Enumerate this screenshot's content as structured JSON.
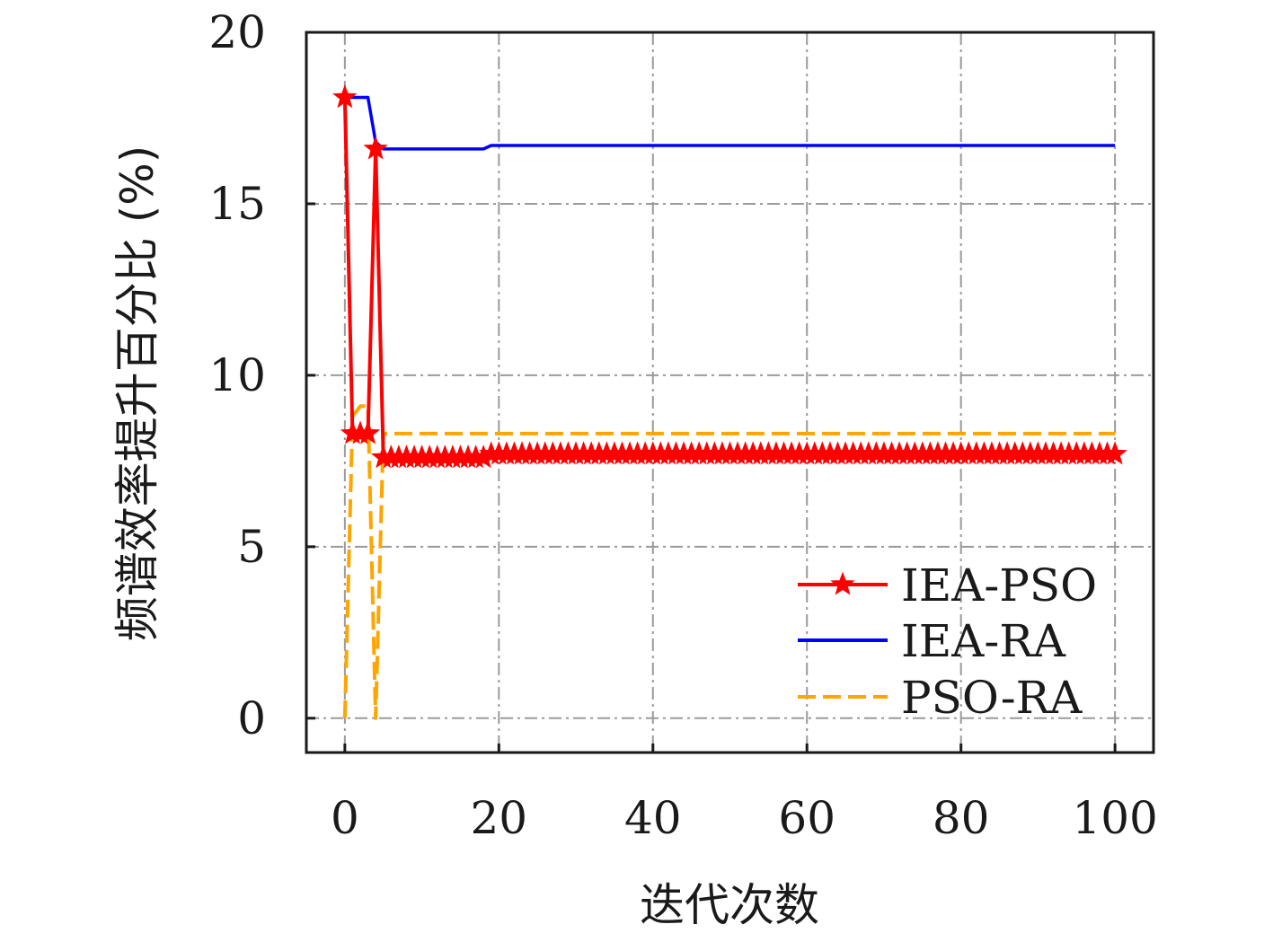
{
  "chart_data": {
    "type": "line",
    "title": "",
    "xlabel": "迭代次数",
    "ylabel": "频谱效率提升百分比 (%)",
    "xlim": [
      -5,
      105
    ],
    "ylim": [
      -1,
      20
    ],
    "xticks": [
      0,
      20,
      40,
      60,
      80,
      100
    ],
    "yticks": [
      0,
      5,
      10,
      15,
      20
    ],
    "grid": true,
    "legend_position": "lower-right",
    "series": [
      {
        "name": "IEA-PSO",
        "color": "#ff0000",
        "style": "solid-star",
        "x": [
          0,
          1,
          2,
          3,
          4,
          5,
          6,
          7,
          8,
          9,
          10,
          11,
          12,
          13,
          14,
          15,
          16,
          17,
          18,
          19,
          20,
          21,
          22,
          23,
          24,
          25,
          26,
          27,
          28,
          29,
          30,
          31,
          32,
          33,
          34,
          35,
          36,
          37,
          38,
          39,
          40,
          41,
          42,
          43,
          44,
          45,
          46,
          47,
          48,
          49,
          50,
          51,
          52,
          53,
          54,
          55,
          56,
          57,
          58,
          59,
          60,
          61,
          62,
          63,
          64,
          65,
          66,
          67,
          68,
          69,
          70,
          71,
          72,
          73,
          74,
          75,
          76,
          77,
          78,
          79,
          80,
          81,
          82,
          83,
          84,
          85,
          86,
          87,
          88,
          89,
          90,
          91,
          92,
          93,
          94,
          95,
          96,
          97,
          98,
          99,
          100
        ],
        "y": [
          18.1,
          8.3,
          8.3,
          8.3,
          16.6,
          7.6,
          7.6,
          7.6,
          7.6,
          7.6,
          7.6,
          7.6,
          7.6,
          7.6,
          7.6,
          7.6,
          7.6,
          7.6,
          7.6,
          7.7,
          7.7,
          7.7,
          7.7,
          7.7,
          7.7,
          7.7,
          7.7,
          7.7,
          7.7,
          7.7,
          7.7,
          7.7,
          7.7,
          7.7,
          7.7,
          7.7,
          7.7,
          7.7,
          7.7,
          7.7,
          7.7,
          7.7,
          7.7,
          7.7,
          7.7,
          7.7,
          7.7,
          7.7,
          7.7,
          7.7,
          7.7,
          7.7,
          7.7,
          7.7,
          7.7,
          7.7,
          7.7,
          7.7,
          7.7,
          7.7,
          7.7,
          7.7,
          7.7,
          7.7,
          7.7,
          7.7,
          7.7,
          7.7,
          7.7,
          7.7,
          7.7,
          7.7,
          7.7,
          7.7,
          7.7,
          7.7,
          7.7,
          7.7,
          7.7,
          7.7,
          7.7,
          7.7,
          7.7,
          7.7,
          7.7,
          7.7,
          7.7,
          7.7,
          7.7,
          7.7,
          7.7,
          7.7,
          7.7,
          7.7,
          7.7,
          7.7,
          7.7,
          7.7,
          7.7,
          7.7,
          7.7
        ]
      },
      {
        "name": "IEA-RA",
        "color": "#0000ff",
        "style": "solid",
        "x": [
          0,
          1,
          2,
          3,
          4,
          5,
          6,
          10,
          15,
          18,
          19,
          20,
          100
        ],
        "y": [
          18.1,
          18.1,
          18.1,
          18.1,
          16.8,
          16.6,
          16.6,
          16.6,
          16.6,
          16.6,
          16.7,
          16.7,
          16.7
        ]
      },
      {
        "name": "PSO-RA",
        "color": "#ffa500",
        "style": "dashed",
        "x": [
          0,
          1,
          2,
          3,
          4,
          5,
          6,
          100
        ],
        "y": [
          0,
          8.8,
          9.1,
          9.1,
          0,
          8.3,
          8.3,
          8.3
        ]
      }
    ]
  }
}
